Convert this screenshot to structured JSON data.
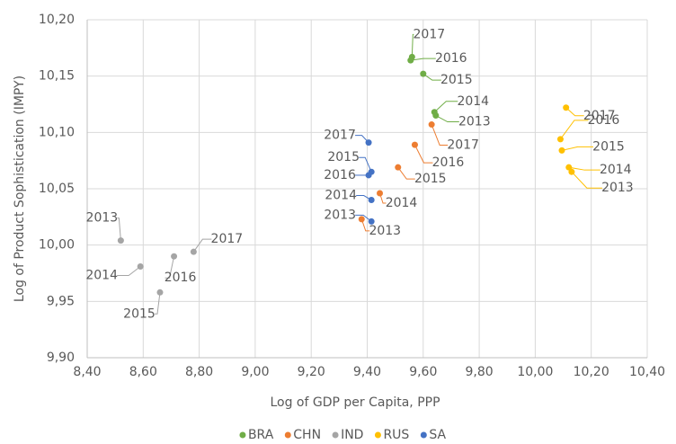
{
  "chart_data": {
    "type": "scatter",
    "xlabel": "Log of GDP per Capita, PPP",
    "ylabel": "Log of Product Sophistication (IMPY)",
    "xlim": [
      8.4,
      10.4
    ],
    "xticks": [
      {
        "value": 8.4,
        "label": "8,40"
      },
      {
        "value": 8.6,
        "label": "8,60"
      },
      {
        "value": 8.8,
        "label": "8,80"
      },
      {
        "value": 9.0,
        "label": "9,00"
      },
      {
        "value": 9.2,
        "label": "9,20"
      },
      {
        "value": 9.4,
        "label": "9,40"
      },
      {
        "value": 9.6,
        "label": "9,60"
      },
      {
        "value": 9.8,
        "label": "9,80"
      },
      {
        "value": 10.0,
        "label": "10,00"
      },
      {
        "value": 10.2,
        "label": "10,20"
      },
      {
        "value": 10.4,
        "label": "10,40"
      }
    ],
    "ylim": [
      9.9,
      10.2
    ],
    "yticks": [
      {
        "value": 9.9,
        "label": "9,90"
      },
      {
        "value": 9.95,
        "label": "9,95"
      },
      {
        "value": 10.0,
        "label": "10,00"
      },
      {
        "value": 10.05,
        "label": "10,05"
      },
      {
        "value": 10.1,
        "label": "10,10"
      },
      {
        "value": 10.15,
        "label": "10,15"
      },
      {
        "value": 10.2,
        "label": "10,20"
      }
    ],
    "grid": true,
    "legend": "bottom",
    "series": [
      {
        "name": "BRA",
        "color": "#70ad47",
        "x": [
          9.56,
          9.555,
          9.6,
          9.64,
          9.645
        ],
        "values": [
          10.167,
          10.164,
          10.152,
          10.118,
          10.115
        ],
        "labels": [
          "2017",
          "2016",
          "2015",
          "2014",
          "2013"
        ]
      },
      {
        "name": "CHN",
        "color": "#ed7d31",
        "x": [
          9.63,
          9.57,
          9.51,
          9.445,
          9.38
        ],
        "values": [
          10.107,
          10.089,
          10.069,
          10.046,
          10.023
        ],
        "labels": [
          "2017",
          "2016",
          "2015",
          "2014",
          "2013"
        ]
      },
      {
        "name": "IND",
        "color": "#a5a5a5",
        "x": [
          8.52,
          8.59,
          8.66,
          8.71,
          8.78
        ],
        "values": [
          10.004,
          9.981,
          9.958,
          9.99,
          9.994
        ],
        "labels": [
          "2013",
          "2014",
          "2015",
          "2016",
          "2017"
        ]
      },
      {
        "name": "RUS",
        "color": "#ffc000",
        "x": [
          10.11,
          10.09,
          10.095,
          10.12,
          10.13
        ],
        "values": [
          10.122,
          10.094,
          10.084,
          10.069,
          10.065
        ],
        "labels": [
          "2017",
          "2016",
          "2015",
          "2014",
          "2013"
        ]
      },
      {
        "name": "SA",
        "color": "#4472c4",
        "x": [
          9.405,
          9.415,
          9.405,
          9.415,
          9.415
        ],
        "values": [
          10.091,
          10.065,
          10.062,
          10.04,
          10.021
        ],
        "labels": [
          "2017",
          "2015",
          "2016",
          "2014",
          "2013"
        ]
      }
    ]
  }
}
